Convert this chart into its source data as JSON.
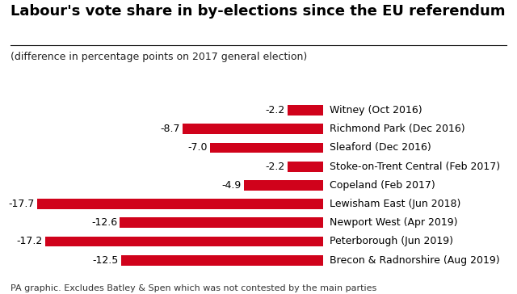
{
  "title": "Labour's vote share in by-elections since the EU referendum",
  "subtitle": "(difference in percentage points on 2017 general election)",
  "footer": "PA graphic. Excludes Batley & Spen which was not contested by the main parties",
  "categories": [
    "Witney (Oct 2016)",
    "Richmond Park (Dec 2016)",
    "Sleaford (Dec 2016)",
    "Stoke-on-Trent Central (Feb 2017)",
    "Copeland (Feb 2017)",
    "Lewisham East (Jun 2018)",
    "Newport West (Apr 2019)",
    "Peterborough (Jun 2019)",
    "Brecon & Radnorshire (Aug 2019)"
  ],
  "values": [
    -2.2,
    -8.7,
    -7.0,
    -2.2,
    -4.9,
    -17.7,
    -12.6,
    -17.2,
    -12.5
  ],
  "bar_color": "#d0021b",
  "value_color": "#000000",
  "label_color": "#000000",
  "background_color": "#ffffff",
  "title_fontsize": 13,
  "subtitle_fontsize": 9,
  "footer_fontsize": 8,
  "value_fontsize": 9,
  "label_fontsize": 9,
  "xlim": [
    -20,
    12
  ]
}
